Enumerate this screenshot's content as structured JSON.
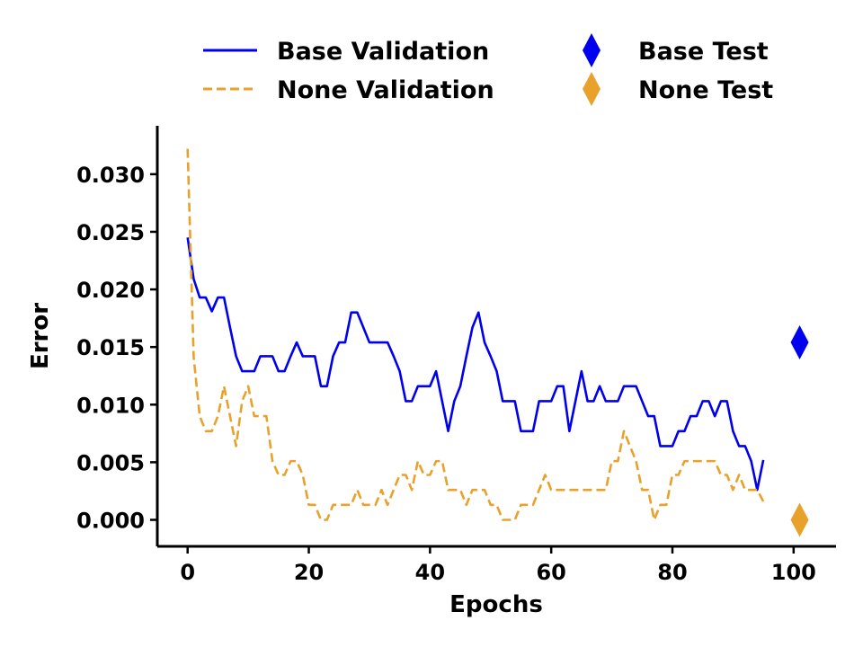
{
  "chart_data": {
    "type": "line",
    "title": "",
    "xlabel": "Epochs",
    "ylabel": "Error",
    "xlim": [
      -5,
      107
    ],
    "ylim": [
      -0.0023,
      0.0342
    ],
    "xticks": [
      0,
      20,
      40,
      60,
      80,
      100
    ],
    "xtick_labels": [
      "0",
      "20",
      "40",
      "60",
      "80",
      "100"
    ],
    "yticks": [
      0.0,
      0.005,
      0.01,
      0.015,
      0.02,
      0.025,
      0.03
    ],
    "ytick_labels": [
      "0.000",
      "0.005",
      "0.010",
      "0.015",
      "0.020",
      "0.025",
      "0.030"
    ],
    "grid": false,
    "legend_position": "top",
    "series": [
      {
        "name": "Base Validation",
        "style": "solid",
        "color": "#0000ee",
        "values": [
          0.0245,
          0.0209,
          0.0193,
          0.0193,
          0.0181,
          0.0193,
          0.0193,
          0.0167,
          0.0142,
          0.0129,
          0.0129,
          0.0129,
          0.0142,
          0.0142,
          0.0142,
          0.0129,
          0.0129,
          0.0142,
          0.0154,
          0.0142,
          0.0142,
          0.0142,
          0.0116,
          0.0116,
          0.0142,
          0.0154,
          0.0154,
          0.018,
          0.018,
          0.0167,
          0.0154,
          0.0154,
          0.0154,
          0.0154,
          0.0142,
          0.0129,
          0.0103,
          0.0103,
          0.0116,
          0.0116,
          0.0116,
          0.0129,
          0.0103,
          0.0077,
          0.0103,
          0.0116,
          0.0142,
          0.0167,
          0.018,
          0.0154,
          0.0142,
          0.0129,
          0.0103,
          0.0103,
          0.0103,
          0.0077,
          0.0077,
          0.0077,
          0.0103,
          0.0103,
          0.0103,
          0.0116,
          0.0116,
          0.0077,
          0.0103,
          0.0129,
          0.0103,
          0.0103,
          0.0116,
          0.0103,
          0.0103,
          0.0103,
          0.0116,
          0.0116,
          0.0116,
          0.0103,
          0.009,
          0.009,
          0.0064,
          0.0064,
          0.0064,
          0.0077,
          0.0077,
          0.009,
          0.009,
          0.0103,
          0.0103,
          0.009,
          0.0103,
          0.0103,
          0.0077,
          0.0064,
          0.0064,
          0.0051,
          0.0026,
          0.0052
        ]
      },
      {
        "name": "None Validation",
        "style": "dashed",
        "color": "#e8a22c",
        "values": [
          0.0322,
          0.0141,
          0.009,
          0.0077,
          0.0077,
          0.009,
          0.0116,
          0.009,
          0.0064,
          0.0103,
          0.0116,
          0.009,
          0.009,
          0.009,
          0.0051,
          0.0039,
          0.0039,
          0.0051,
          0.0051,
          0.0039,
          0.0013,
          0.0013,
          0.0,
          0.0,
          0.0013,
          0.0013,
          0.0013,
          0.0013,
          0.0026,
          0.0013,
          0.0013,
          0.0013,
          0.0026,
          0.0013,
          0.0026,
          0.0039,
          0.0039,
          0.0026,
          0.0051,
          0.0039,
          0.0039,
          0.0051,
          0.0051,
          0.0026,
          0.0026,
          0.0026,
          0.0013,
          0.0026,
          0.0026,
          0.0026,
          0.0013,
          0.0013,
          0.0,
          0.0,
          0.0,
          0.0013,
          0.0013,
          0.0013,
          0.0026,
          0.0039,
          0.0026,
          0.0026,
          0.0026,
          0.0026,
          0.0026,
          0.0026,
          0.0026,
          0.0026,
          0.0026,
          0.0026,
          0.0051,
          0.0051,
          0.0077,
          0.0064,
          0.0051,
          0.0026,
          0.0026,
          0.0,
          0.0013,
          0.0013,
          0.0039,
          0.0039,
          0.0051,
          0.0051,
          0.0051,
          0.0051,
          0.0051,
          0.0051,
          0.0039,
          0.0039,
          0.0026,
          0.0039,
          0.0026,
          0.0026,
          0.0026,
          0.0016
        ]
      },
      {
        "name": "Base Test",
        "style": "marker",
        "marker": "diamond",
        "color": "#0000ee",
        "points": [
          {
            "x": 101,
            "y": 0.0154
          }
        ]
      },
      {
        "name": "None Test",
        "style": "marker",
        "marker": "diamond",
        "color": "#e8a22c",
        "points": [
          {
            "x": 101,
            "y": 0.0
          }
        ]
      }
    ]
  }
}
